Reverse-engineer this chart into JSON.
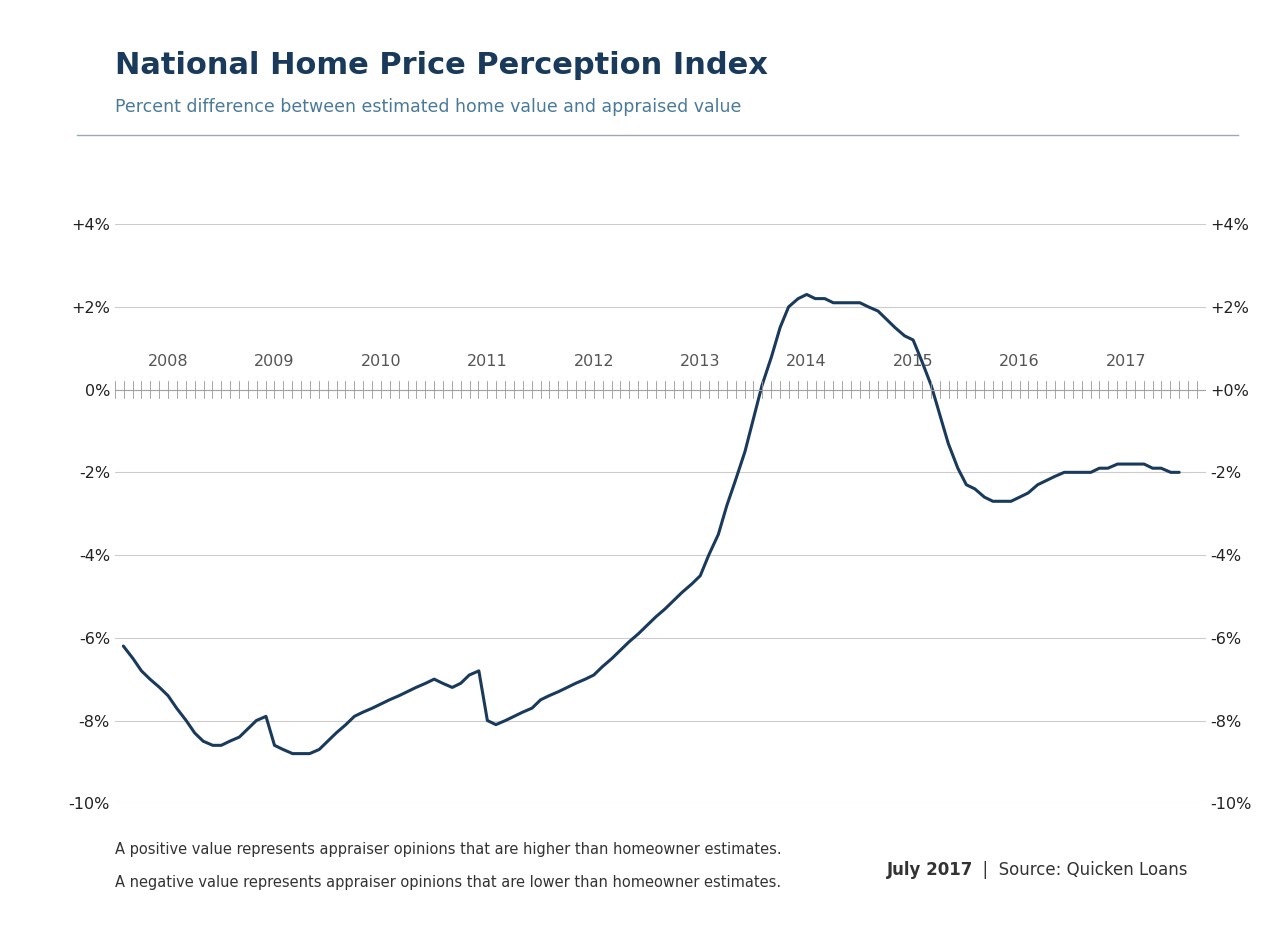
{
  "title": "National Home Price Perception Index",
  "subtitle": "Percent difference between estimated home value and appraised value",
  "line_color": "#1a3a5c",
  "line_width": 2.2,
  "background_color": "#ffffff",
  "grid_color": "#cccccc",
  "title_color": "#1a3a5c",
  "subtitle_color": "#4a7a9a",
  "footer_left_line1": "A positive value represents appraiser opinions that are higher than homeowner estimates.",
  "footer_left_line2": "A negative value represents appraiser opinions that are lower than homeowner estimates.",
  "footer_right_bold": "July 2017",
  "footer_right_normal": "  |  Source: Quicken Loans",
  "ylim": [
    -0.1,
    0.04
  ],
  "yticks": [
    -0.1,
    -0.08,
    -0.06,
    -0.04,
    -0.02,
    0.0,
    0.02,
    0.04
  ],
  "ytick_labels_left": [
    "-10%",
    "-8%",
    "-6%",
    "-4%",
    "-2%",
    "0%",
    "+2%",
    "+4%"
  ],
  "ytick_labels_right": [
    "-10%",
    "-8%",
    "-6%",
    "-4%",
    "-2%",
    "+0%",
    "+2%",
    "+4%"
  ],
  "xmin": 2007.5,
  "xmax": 2017.75,
  "xtick_positions": [
    2008,
    2009,
    2010,
    2011,
    2012,
    2013,
    2014,
    2015,
    2016,
    2017
  ],
  "xtick_labels": [
    "2008",
    "2009",
    "2010",
    "2011",
    "2012",
    "2013",
    "2014",
    "2015",
    "2016",
    "2017"
  ],
  "separator_color": "#9aabb8",
  "text_color": "#333333",
  "x": [
    2007.58,
    2007.67,
    2007.75,
    2007.83,
    2007.92,
    2008.0,
    2008.08,
    2008.17,
    2008.25,
    2008.33,
    2008.42,
    2008.5,
    2008.58,
    2008.67,
    2008.75,
    2008.83,
    2008.92,
    2009.0,
    2009.08,
    2009.17,
    2009.25,
    2009.33,
    2009.42,
    2009.5,
    2009.58,
    2009.67,
    2009.75,
    2009.83,
    2009.92,
    2010.0,
    2010.08,
    2010.17,
    2010.25,
    2010.33,
    2010.42,
    2010.5,
    2010.58,
    2010.67,
    2010.75,
    2010.83,
    2010.92,
    2011.0,
    2011.08,
    2011.17,
    2011.25,
    2011.33,
    2011.42,
    2011.5,
    2011.58,
    2011.67,
    2011.75,
    2011.83,
    2011.92,
    2012.0,
    2012.08,
    2012.17,
    2012.25,
    2012.33,
    2012.42,
    2012.5,
    2012.58,
    2012.67,
    2012.75,
    2012.83,
    2012.92,
    2013.0,
    2013.08,
    2013.17,
    2013.25,
    2013.33,
    2013.42,
    2013.5,
    2013.58,
    2013.67,
    2013.75,
    2013.83,
    2013.92,
    2014.0,
    2014.08,
    2014.17,
    2014.25,
    2014.33,
    2014.42,
    2014.5,
    2014.58,
    2014.67,
    2014.75,
    2014.83,
    2014.92,
    2015.0,
    2015.08,
    2015.17,
    2015.25,
    2015.33,
    2015.42,
    2015.5,
    2015.58,
    2015.67,
    2015.75,
    2015.83,
    2015.92,
    2016.0,
    2016.08,
    2016.17,
    2016.25,
    2016.33,
    2016.42,
    2016.5,
    2016.58,
    2016.67,
    2016.75,
    2016.83,
    2016.92,
    2017.0,
    2017.08,
    2017.17,
    2017.25,
    2017.33,
    2017.42,
    2017.5
  ],
  "y": [
    -0.062,
    -0.065,
    -0.068,
    -0.07,
    -0.072,
    -0.074,
    -0.077,
    -0.08,
    -0.083,
    -0.085,
    -0.086,
    -0.086,
    -0.085,
    -0.084,
    -0.082,
    -0.08,
    -0.079,
    -0.086,
    -0.087,
    -0.088,
    -0.088,
    -0.088,
    -0.087,
    -0.085,
    -0.083,
    -0.081,
    -0.079,
    -0.078,
    -0.077,
    -0.076,
    -0.075,
    -0.074,
    -0.073,
    -0.072,
    -0.071,
    -0.07,
    -0.071,
    -0.072,
    -0.071,
    -0.069,
    -0.068,
    -0.08,
    -0.081,
    -0.08,
    -0.079,
    -0.078,
    -0.077,
    -0.075,
    -0.074,
    -0.073,
    -0.072,
    -0.071,
    -0.07,
    -0.069,
    -0.067,
    -0.065,
    -0.063,
    -0.061,
    -0.059,
    -0.057,
    -0.055,
    -0.053,
    -0.051,
    -0.049,
    -0.047,
    -0.045,
    -0.04,
    -0.035,
    -0.028,
    -0.022,
    -0.015,
    -0.007,
    0.001,
    0.008,
    0.015,
    0.02,
    0.022,
    0.023,
    0.022,
    0.022,
    0.021,
    0.021,
    0.021,
    0.021,
    0.02,
    0.019,
    0.017,
    0.015,
    0.013,
    0.012,
    0.007,
    0.001,
    -0.006,
    -0.013,
    -0.019,
    -0.023,
    -0.024,
    -0.026,
    -0.027,
    -0.027,
    -0.027,
    -0.026,
    -0.025,
    -0.023,
    -0.022,
    -0.021,
    -0.02,
    -0.02,
    -0.02,
    -0.02,
    -0.019,
    -0.019,
    -0.018,
    -0.018,
    -0.018,
    -0.018,
    -0.019,
    -0.019,
    -0.02,
    -0.02
  ]
}
